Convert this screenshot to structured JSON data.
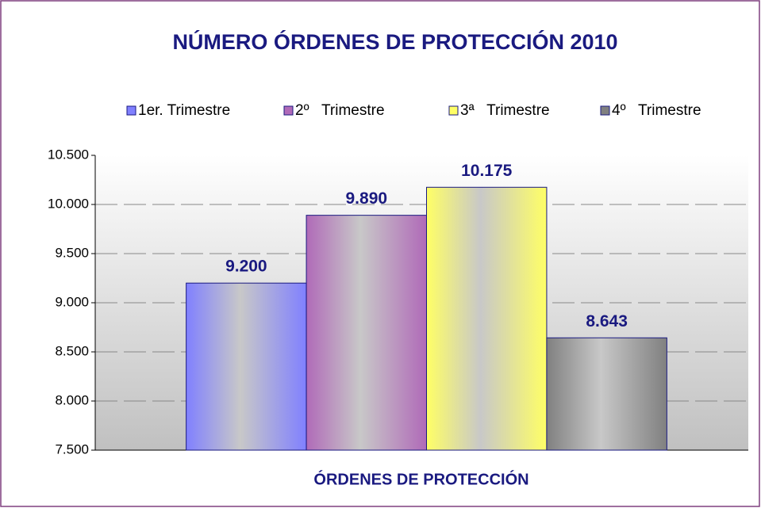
{
  "chart_data": {
    "type": "bar",
    "title": "NÚMERO ÓRDENES DE PROTECCIÓN 2010",
    "x_label": "ÓRDENES DE PROTECCIÓN",
    "categories": [
      null
    ],
    "series": [
      {
        "name": "1er. Trimestre",
        "color": "#8080ff",
        "values": [
          9200
        ],
        "value_labels": [
          "9.200"
        ]
      },
      {
        "name": "2º   Trimestre",
        "color": "#b06ab8",
        "values": [
          9890
        ],
        "value_labels": [
          "9.890"
        ]
      },
      {
        "name": "3ª   Trimestre",
        "color": "#ffff66",
        "values": [
          10175
        ],
        "value_labels": [
          "10.175"
        ]
      },
      {
        "name": "4º   Trimestre",
        "color": "#808080",
        "values": [
          8643
        ],
        "value_labels": [
          "8.643"
        ]
      }
    ],
    "ylim": [
      7500,
      10500
    ],
    "yticks": [
      {
        "value": 7500,
        "label": "7.500"
      },
      {
        "value": 8000,
        "label": "8.000"
      },
      {
        "value": 8500,
        "label": "8.500"
      },
      {
        "value": 9000,
        "label": "9.000"
      },
      {
        "value": 9500,
        "label": "9.500"
      },
      {
        "value": 10000,
        "label": "10.000"
      },
      {
        "value": 10500,
        "label": "10.500"
      }
    ],
    "grid": true,
    "legend": "top"
  }
}
